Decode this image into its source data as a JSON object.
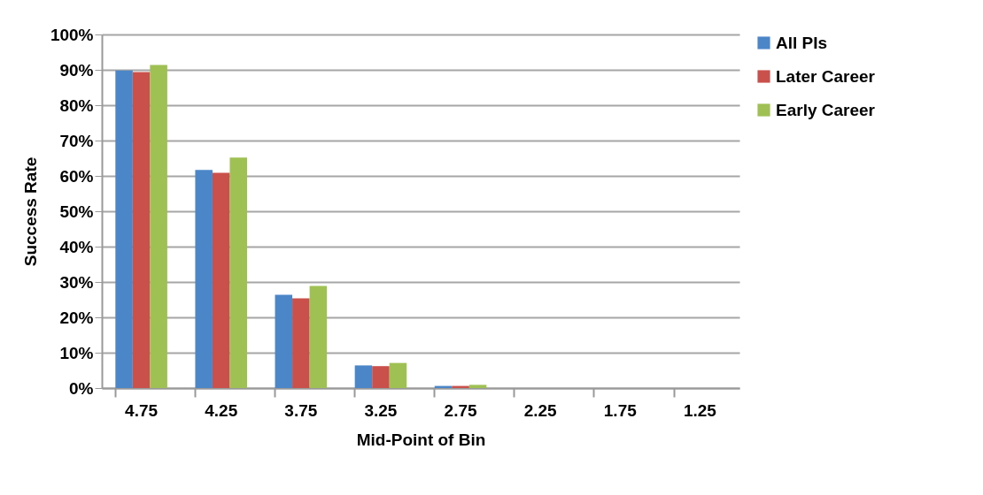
{
  "chart_data": {
    "type": "bar",
    "xlabel": "Mid-Point of Bin",
    "ylabel": "Success Rate",
    "categories": [
      "4.75",
      "4.25",
      "3.75",
      "3.25",
      "2.75",
      "2.25",
      "1.75",
      "1.25"
    ],
    "series": [
      {
        "name": "All PIs",
        "color": "#4a86c8",
        "values": [
          89.8,
          61.7,
          26.4,
          6.4,
          0.6,
          0,
          0,
          0
        ]
      },
      {
        "name": "Later Career",
        "color": "#c9504b",
        "values": [
          89.4,
          60.9,
          25.4,
          6.2,
          0.6,
          0,
          0,
          0
        ]
      },
      {
        "name": "Early Career",
        "color": "#9fc052",
        "values": [
          91.4,
          65.2,
          28.9,
          7.1,
          0.9,
          0,
          0,
          0
        ]
      }
    ],
    "ylim": [
      0,
      100
    ],
    "yticks": [
      {
        "value": 0,
        "label": "0%"
      },
      {
        "value": 10,
        "label": "10%"
      },
      {
        "value": 20,
        "label": "20%"
      },
      {
        "value": 30,
        "label": "30%"
      },
      {
        "value": 40,
        "label": "40%"
      },
      {
        "value": 50,
        "label": "50%"
      },
      {
        "value": 60,
        "label": "60%"
      },
      {
        "value": 70,
        "label": "70%"
      },
      {
        "value": 80,
        "label": "80%"
      },
      {
        "value": 90,
        "label": "90%"
      },
      {
        "value": 100,
        "label": "100%"
      }
    ],
    "grid": "y",
    "legend": "right"
  }
}
